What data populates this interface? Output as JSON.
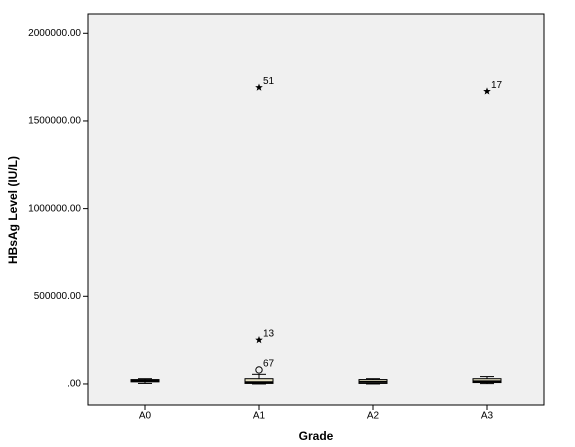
{
  "chart_data": {
    "type": "boxplot",
    "x_label": "Grade",
    "y_label": "HBsAg Level (IU/L)",
    "categories": [
      "A0",
      "A1",
      "A2",
      "A3"
    ],
    "boxes": [
      {
        "whislo": 3000,
        "q1": 12000,
        "med": 18000,
        "q3": 25000,
        "whishi": 30000,
        "outliers": []
      },
      {
        "whislo": 0,
        "q1": 3000,
        "med": 10000,
        "q3": 30000,
        "whishi": 55000,
        "outliers": [
          {
            "value": 80000,
            "label": "67",
            "marker": "circle"
          },
          {
            "value": 251000,
            "label": "13",
            "marker": "star"
          },
          {
            "value": 1691000,
            "label": "51",
            "marker": "star"
          }
        ]
      },
      {
        "whislo": 0,
        "q1": 3000,
        "med": 12000,
        "q3": 25000,
        "whishi": 30000,
        "outliers": []
      },
      {
        "whislo": 2000,
        "q1": 8000,
        "med": 15000,
        "q3": 30000,
        "whishi": 42000,
        "outliers": [
          {
            "value": 1669000,
            "label": "17",
            "marker": "star"
          }
        ]
      }
    ],
    "box_color": "#e6e2c4",
    "ylim": [
      -120000,
      2110000
    ],
    "yticks": [
      {
        "value": 0,
        "label": ".00"
      },
      {
        "value": 500000,
        "label": "500000.00"
      },
      {
        "value": 1000000,
        "label": "1000000.00"
      },
      {
        "value": 1500000,
        "label": "1500000.00"
      },
      {
        "value": 2000000,
        "label": "2000000.00"
      }
    ]
  }
}
